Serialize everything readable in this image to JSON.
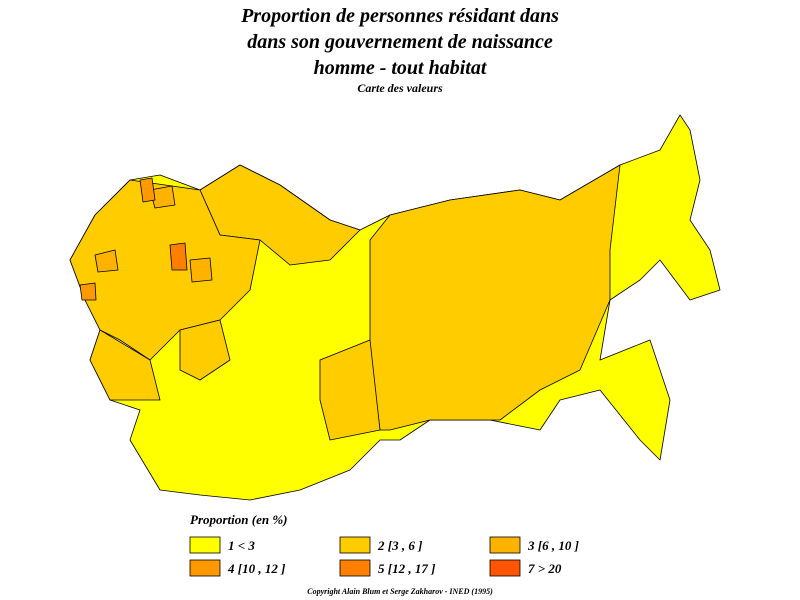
{
  "header": {
    "title_lines": [
      "Proportion de personnes résidant dans",
      "dans son gouvernement de naissance",
      "homme  -  tout habitat"
    ],
    "subtitle": "Carte des valeurs"
  },
  "legend": {
    "title": "Proportion (en %)",
    "items": [
      {
        "label": "1  <  3",
        "color": "#ffff00"
      },
      {
        "label": "2  [3 , 6 ]",
        "color": "#ffcc00"
      },
      {
        "label": "3  [6 , 10 ]",
        "color": "#ffb300"
      },
      {
        "label": "4  [10 , 12 ]",
        "color": "#ff9900"
      },
      {
        "label": "5  [12 , 17 ]",
        "color": "#ff7f00"
      },
      {
        "label": "7  >  20",
        "color": "#ff5500"
      }
    ]
  },
  "footer": {
    "copyright": "Copyright Alain Blum et Serge Zakharov  -  INED (1995)"
  }
}
